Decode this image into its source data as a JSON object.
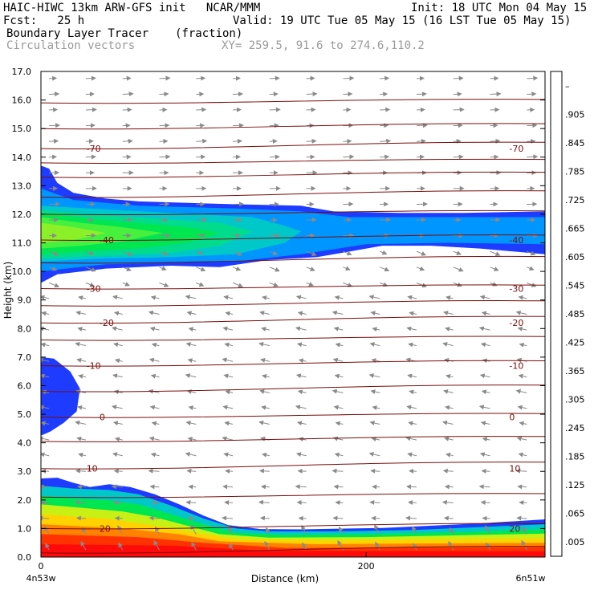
{
  "header": {
    "line1_left": "HAIC-HIWC 13km ARW-GFS init   NCAR/MMM",
    "line1_right": "Init: 18 UTC Mon 04 May 15",
    "line2_left": "Fcst:   25 h",
    "line2_right": "Valid: 19 UTC Tue 05 May 15 (16 LST Tue 05 May 15)",
    "line3_left": "Boundary Layer Tracer",
    "line3_mid": "(fraction)",
    "line4_left": "Circulation vectors",
    "line4_mid": "XY= 259.5, 91.6 to 274.6,110.2"
  },
  "chart_data": {
    "type": "heatmap",
    "xlabel": "Distance (km)",
    "ylabel": "Height (km)",
    "x_range_km": [
      0,
      310
    ],
    "x_ticks": [
      {
        "value": 0,
        "label": "0"
      },
      {
        "value": 200,
        "label": "200"
      }
    ],
    "x_end_labels": {
      "left": "4n53w",
      "right": "6n51w"
    },
    "ylim": [
      0,
      17
    ],
    "y_ticks": [
      "0.0",
      "1.0",
      "2.0",
      "3.0",
      "4.0",
      "5.0",
      "6.0",
      "7.0",
      "8.0",
      "9.0",
      "10.0",
      "11.0",
      "12.0",
      "13.0",
      "14.0",
      "15.0",
      "16.0",
      "17.0"
    ],
    "colorbar": {
      "labels": [
        ".005",
        ".065",
        ".125",
        ".185",
        ".245",
        ".305",
        ".365",
        ".425",
        ".485",
        ".545",
        ".605",
        ".665",
        ".725",
        ".785",
        ".845",
        ".905",
        "–"
      ],
      "colors": [
        "#ffffff",
        "#1e3cff",
        "#0096ff",
        "#00c8c8",
        "#00dc8c",
        "#00e650",
        "#46f03c",
        "#8cf028",
        "#c8f014",
        "#f0f000",
        "#ffd200",
        "#ffaa00",
        "#ff8200",
        "#ff5a00",
        "#ff3200",
        "#ff0a0a",
        "#e60000"
      ]
    },
    "temperature_contours": [
      {
        "label": "-70",
        "height_km": 14.3
      },
      {
        "label": "-40",
        "height_km": 11.1
      },
      {
        "label": "-30",
        "height_km": 9.4
      },
      {
        "label": "-20",
        "height_km": 8.2
      },
      {
        "label": "-10",
        "height_km": 6.7
      },
      {
        "label": "0",
        "height_km": 4.9
      },
      {
        "label": "10",
        "height_km": 3.1
      },
      {
        "label": "20",
        "height_km": 1.0
      }
    ],
    "tracer_fields": {
      "upper_layer_km": [
        10.3,
        12.3
      ],
      "mid_blob_km": [
        4.3,
        7.0
      ],
      "boundary_layer_top_km": 2.6
    },
    "grid": false,
    "legend": "colorbar-right"
  }
}
